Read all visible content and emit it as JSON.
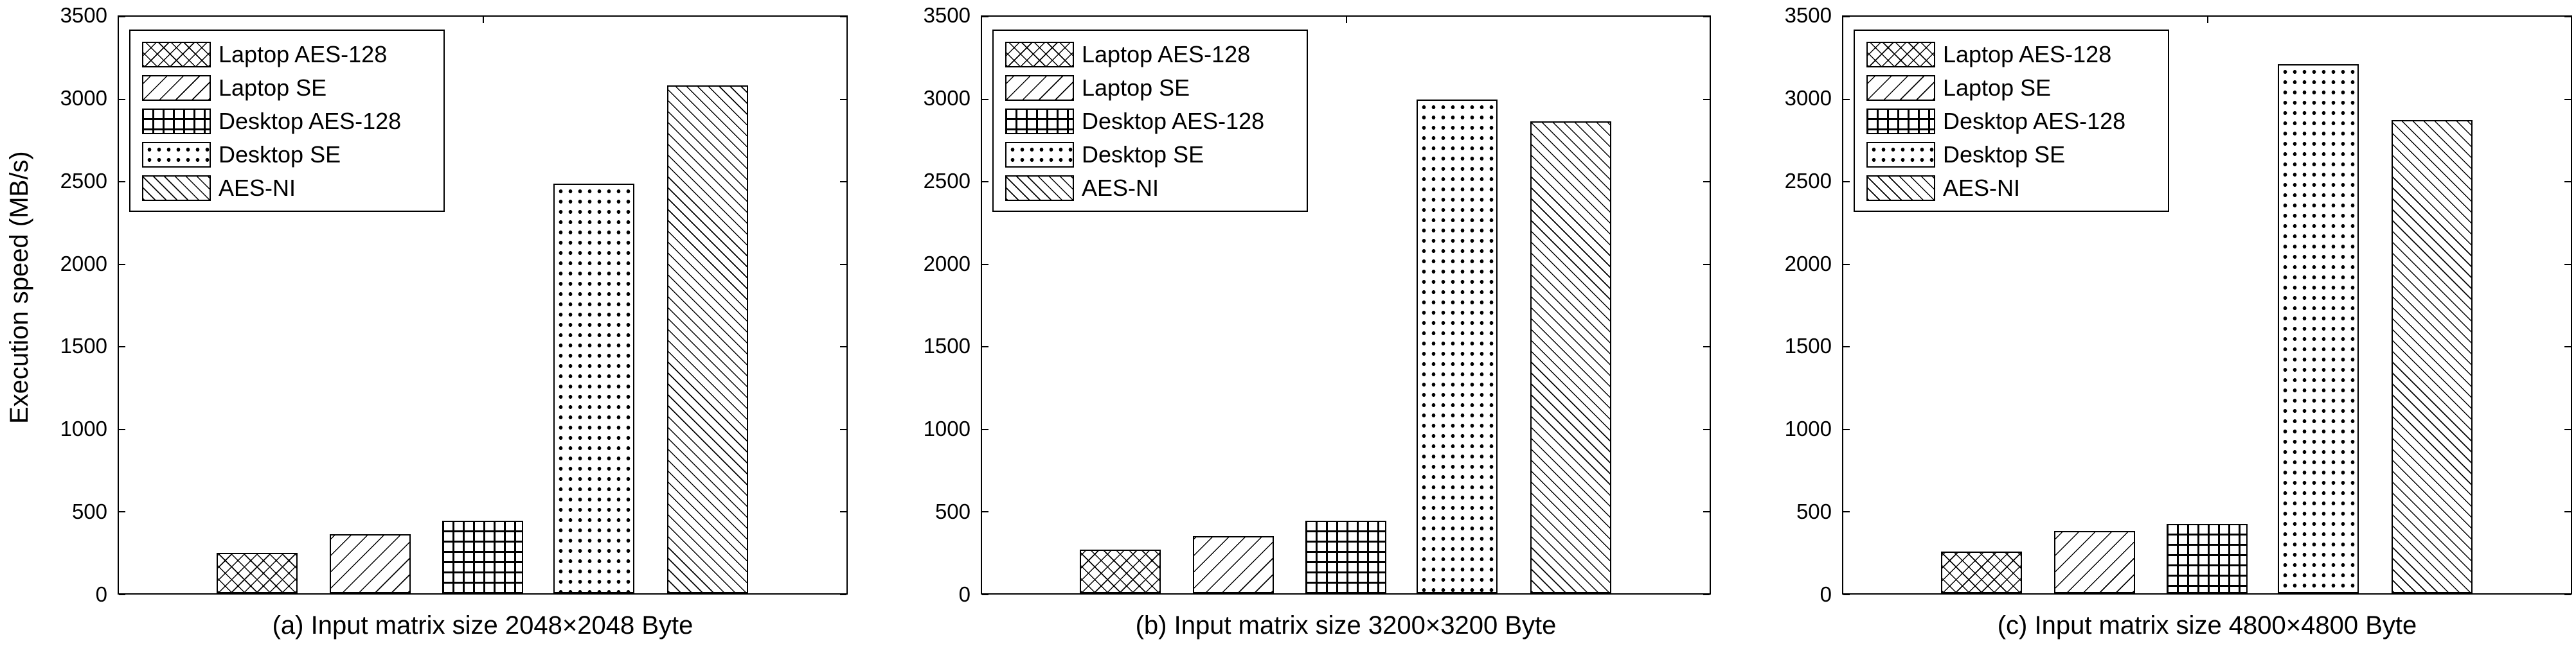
{
  "figure": {
    "ylabel": "Execution speed (MB/s)",
    "yticks": [
      "0",
      "500",
      "1000",
      "1500",
      "2000",
      "2500",
      "3000",
      "3500"
    ],
    "legend": [
      "Laptop AES-128",
      "Laptop SE",
      "Desktop AES-128",
      "Desktop SE",
      "AES-NI"
    ],
    "captions": [
      "(a) Input matrix size 2048×2048 Byte",
      "(b) Input matrix size 3200×3200 Byte",
      "(c) Input matrix size 4800×4800 Byte"
    ]
  },
  "chart_data": [
    {
      "type": "bar",
      "title": "(a) Input matrix size 2048×2048 Byte",
      "xlabel": "",
      "ylabel": "Execution speed (MB/s)",
      "ylim": [
        0,
        3500
      ],
      "yticks": [
        0,
        500,
        1000,
        1500,
        2000,
        2500,
        3000,
        3500
      ],
      "grid": false,
      "legend_position": "upper left",
      "categories": [
        "Laptop AES-128",
        "Laptop SE",
        "Desktop AES-128",
        "Desktop SE",
        "AES-NI"
      ],
      "values": [
        245,
        357,
        438,
        2483,
        3077
      ]
    },
    {
      "type": "bar",
      "title": "(b) Input matrix size 3200×3200 Byte",
      "xlabel": "",
      "ylabel": "",
      "ylim": [
        0,
        3500
      ],
      "yticks": [
        0,
        500,
        1000,
        1500,
        2000,
        2500,
        3000,
        3500
      ],
      "grid": false,
      "legend_position": "upper left",
      "categories": [
        "Laptop AES-128",
        "Laptop SE",
        "Desktop AES-128",
        "Desktop SE",
        "AES-NI"
      ],
      "values": [
        264,
        345,
        438,
        2992,
        2860
      ]
    },
    {
      "type": "bar",
      "title": "(c) Input matrix size 4800×4800 Byte",
      "xlabel": "",
      "ylabel": "",
      "ylim": [
        0,
        3500
      ],
      "yticks": [
        0,
        500,
        1000,
        1500,
        2000,
        2500,
        3000,
        3500
      ],
      "grid": false,
      "legend_position": "upper left",
      "categories": [
        "Laptop AES-128",
        "Laptop SE",
        "Desktop AES-128",
        "Desktop SE",
        "AES-NI"
      ],
      "values": [
        252,
        376,
        419,
        3205,
        2867
      ]
    }
  ]
}
